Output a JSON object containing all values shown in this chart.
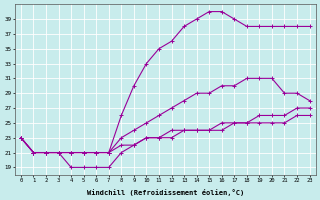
{
  "xlabel": "Windchill (Refroidissement éolien,°C)",
  "background_color": "#c8ecec",
  "line_color": "#990099",
  "grid_color": "#ffffff",
  "series": [
    {
      "x": [
        0,
        1,
        2,
        3,
        4,
        5,
        6,
        7,
        8,
        9,
        10,
        11,
        12,
        13,
        14,
        15,
        16,
        17,
        18,
        19,
        20,
        21,
        22,
        23
      ],
      "y": [
        23,
        21,
        21,
        21,
        21,
        21,
        21,
        21,
        26,
        30,
        33,
        35,
        36,
        38,
        39,
        40,
        40,
        39,
        38,
        38,
        38,
        38,
        38,
        38
      ]
    },
    {
      "x": [
        0,
        1,
        2,
        3,
        4,
        5,
        6,
        7,
        8,
        9,
        10,
        11,
        12,
        13,
        14,
        15,
        16,
        17,
        18,
        19,
        20,
        21,
        22,
        23
      ],
      "y": [
        23,
        21,
        21,
        21,
        21,
        21,
        21,
        21,
        23,
        24,
        25,
        26,
        27,
        28,
        29,
        29,
        30,
        30,
        31,
        31,
        31,
        29,
        29,
        28
      ]
    },
    {
      "x": [
        0,
        1,
        2,
        3,
        4,
        5,
        6,
        7,
        8,
        9,
        10,
        11,
        12,
        13,
        14,
        15,
        16,
        17,
        18,
        19,
        20,
        21,
        22,
        23
      ],
      "y": [
        23,
        21,
        21,
        21,
        21,
        21,
        21,
        21,
        22,
        22,
        23,
        23,
        23,
        24,
        24,
        24,
        25,
        25,
        25,
        26,
        26,
        26,
        27,
        27
      ]
    },
    {
      "x": [
        0,
        1,
        2,
        3,
        4,
        5,
        6,
        7,
        8,
        9,
        10,
        11,
        12,
        13,
        14,
        15,
        16,
        17,
        18,
        19,
        20,
        21,
        22,
        23
      ],
      "y": [
        23,
        21,
        21,
        21,
        19,
        19,
        19,
        19,
        21,
        22,
        23,
        23,
        24,
        24,
        24,
        24,
        24,
        25,
        25,
        25,
        25,
        25,
        26,
        26
      ]
    }
  ]
}
